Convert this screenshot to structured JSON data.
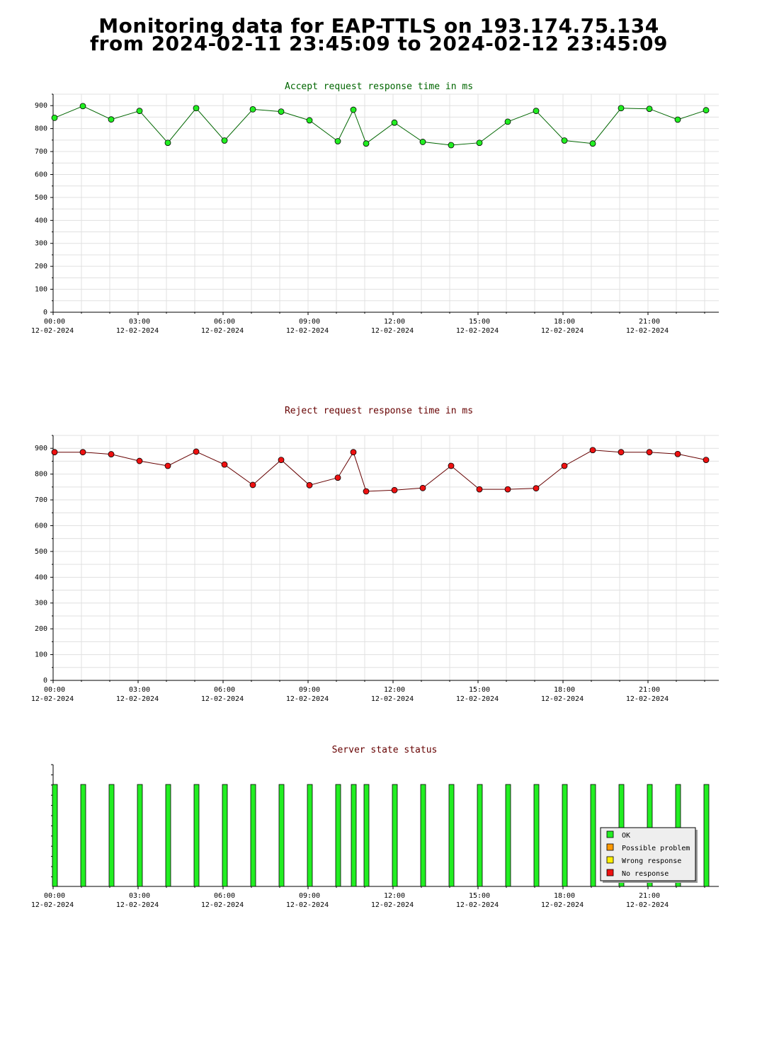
{
  "page": {
    "title_line1": "Monitoring data for EAP-TTLS on 193.174.75.134",
    "title_line2": "from 2024-02-11 23:45:09 to 2024-02-12 23:45:09"
  },
  "colors": {
    "accept_title": "#006600",
    "accept_line": "#006600",
    "accept_marker": "#22ee22",
    "reject_title": "#660000",
    "reject_line": "#660000",
    "reject_marker": "#ee1111",
    "status_title": "#660000",
    "ok": "#22ee22",
    "possible_problem": "#ff9900",
    "wrong_response": "#ffee00",
    "no_response": "#ee1111",
    "grid": "#e0e0e0"
  },
  "x_axis": {
    "ticks": [
      {
        "time": "00:00",
        "date": "12-02-2024",
        "hour": 0
      },
      {
        "time": "03:00",
        "date": "12-02-2024",
        "hour": 3
      },
      {
        "time": "06:00",
        "date": "12-02-2024",
        "hour": 6
      },
      {
        "time": "09:00",
        "date": "12-02-2024",
        "hour": 9
      },
      {
        "time": "12:00",
        "date": "12-02-2024",
        "hour": 12
      },
      {
        "time": "15:00",
        "date": "12-02-2024",
        "hour": 15
      },
      {
        "time": "18:00",
        "date": "12-02-2024",
        "hour": 18
      },
      {
        "time": "21:00",
        "date": "12-02-2024",
        "hour": 21
      }
    ]
  },
  "chart_data": [
    {
      "type": "line",
      "title": "Accept request response time in ms",
      "xlabel": "",
      "ylabel": "",
      "x_unit": "hour of 12-02-2024",
      "ylim": [
        0,
        950
      ],
      "yticks": [
        0,
        100,
        200,
        300,
        400,
        500,
        600,
        700,
        800,
        900
      ],
      "grid": true,
      "x": [
        0.05,
        1.05,
        2.05,
        3.05,
        4.05,
        5.05,
        6.05,
        7.05,
        8.05,
        9.05,
        10.05,
        10.6,
        11.05,
        12.05,
        13.05,
        14.05,
        15.05,
        16.05,
        17.05,
        18.05,
        19.05,
        20.05,
        21.05,
        22.05,
        23.05
      ],
      "y": [
        847,
        898,
        840,
        877,
        738,
        889,
        748,
        884,
        874,
        836,
        745,
        882,
        735,
        826,
        742,
        728,
        738,
        830,
        877,
        748,
        735,
        889,
        886,
        839,
        880
      ]
    },
    {
      "type": "line",
      "title": "Reject request response time in ms",
      "xlabel": "",
      "ylabel": "",
      "x_unit": "hour of 12-02-2024",
      "ylim": [
        0,
        950
      ],
      "yticks": [
        0,
        100,
        200,
        300,
        400,
        500,
        600,
        700,
        800,
        900
      ],
      "grid": true,
      "x": [
        0.05,
        1.05,
        2.05,
        3.05,
        4.05,
        5.05,
        6.05,
        7.05,
        8.05,
        9.05,
        10.05,
        10.6,
        11.05,
        12.05,
        13.05,
        14.05,
        15.05,
        16.05,
        17.05,
        18.05,
        19.05,
        20.05,
        21.05,
        22.05,
        23.05
      ],
      "y": [
        885,
        885,
        877,
        851,
        832,
        887,
        837,
        758,
        855,
        757,
        786,
        885,
        733,
        738,
        746,
        832,
        741,
        741,
        745,
        832,
        893,
        885,
        885,
        878,
        855
      ]
    },
    {
      "type": "bar",
      "title": "Server state status",
      "x_unit": "hour of 12-02-2024",
      "x": [
        0.05,
        1.05,
        2.05,
        3.05,
        4.05,
        5.05,
        6.05,
        7.05,
        8.05,
        9.05,
        10.05,
        10.6,
        11.05,
        12.05,
        13.05,
        14.05,
        15.05,
        16.05,
        17.05,
        18.05,
        19.05,
        20.05,
        21.05,
        22.05,
        23.05
      ],
      "states": [
        "OK",
        "OK",
        "OK",
        "OK",
        "OK",
        "OK",
        "OK",
        "OK",
        "OK",
        "OK",
        "OK",
        "OK",
        "OK",
        "OK",
        "OK",
        "OK",
        "OK",
        "OK",
        "OK",
        "OK",
        "OK",
        "OK",
        "OK",
        "OK",
        "OK"
      ],
      "legend": [
        "OK",
        "Possible problem",
        "Wrong response",
        "No response"
      ],
      "legend_position": "bottom-right",
      "grid": false
    }
  ]
}
